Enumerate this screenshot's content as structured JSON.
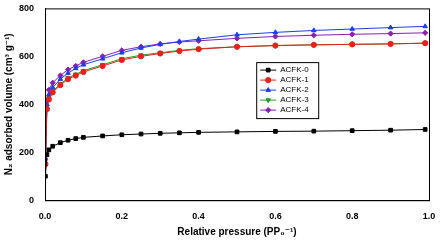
{
  "chart_data": {
    "type": "line",
    "x_label": "Relative pressure (PP₀⁻¹)",
    "y_label": "N₂ adsorbed volume (cm³ g⁻¹)",
    "xlim": [
      0,
      1
    ],
    "xticks": [
      {
        "value": 0,
        "label": "0.0"
      },
      0.2,
      0.4,
      0.6,
      0.8,
      {
        "value": 1,
        "label": "1.0"
      }
    ],
    "ylim": [
      0,
      800
    ],
    "yticks": [
      0,
      200,
      400,
      600,
      800
    ],
    "grid": false,
    "legend": "right",
    "x": [
      0.001,
      0.005,
      0.01,
      0.02,
      0.04,
      0.06,
      0.08,
      0.1,
      0.15,
      0.2,
      0.25,
      0.3,
      0.35,
      0.4,
      0.5,
      0.6,
      0.7,
      0.8,
      0.9,
      0.99
    ],
    "series": [
      {
        "name": "ACFK-0",
        "color": "#000000",
        "marker": "square",
        "values": [
          100,
          190,
          210,
          225,
          240,
          250,
          257,
          262,
          268,
          273,
          276,
          279,
          281,
          283,
          285,
          287,
          288,
          290,
          292,
          295
        ]
      },
      {
        "name": "ACFK-1",
        "color": "#e8201a",
        "marker": "circle",
        "values": [
          150,
          380,
          420,
          450,
          480,
          505,
          520,
          535,
          560,
          585,
          600,
          612,
          622,
          630,
          640,
          645,
          648,
          650,
          652,
          655
        ]
      },
      {
        "name": "ACFK-2",
        "color": "#1a3ee8",
        "marker": "triangle",
        "values": [
          160,
          400,
          440,
          470,
          505,
          530,
          550,
          565,
          590,
          615,
          635,
          650,
          662,
          672,
          690,
          700,
          708,
          714,
          720,
          725
        ]
      },
      {
        "name": "ACFK-3",
        "color": "#1f9e1f",
        "marker": "triangle-down",
        "values": [
          150,
          390,
          425,
          455,
          485,
          510,
          525,
          540,
          565,
          590,
          605,
          615,
          625,
          632,
          640,
          645,
          648,
          650,
          652,
          655
        ]
      },
      {
        "name": "ACFK-4",
        "color": "#8a1fb0",
        "marker": "diamond",
        "values": [
          170,
          420,
          460,
          490,
          520,
          545,
          560,
          575,
          600,
          625,
          640,
          652,
          660,
          665,
          675,
          683,
          688,
          692,
          695,
          698
        ]
      }
    ]
  }
}
